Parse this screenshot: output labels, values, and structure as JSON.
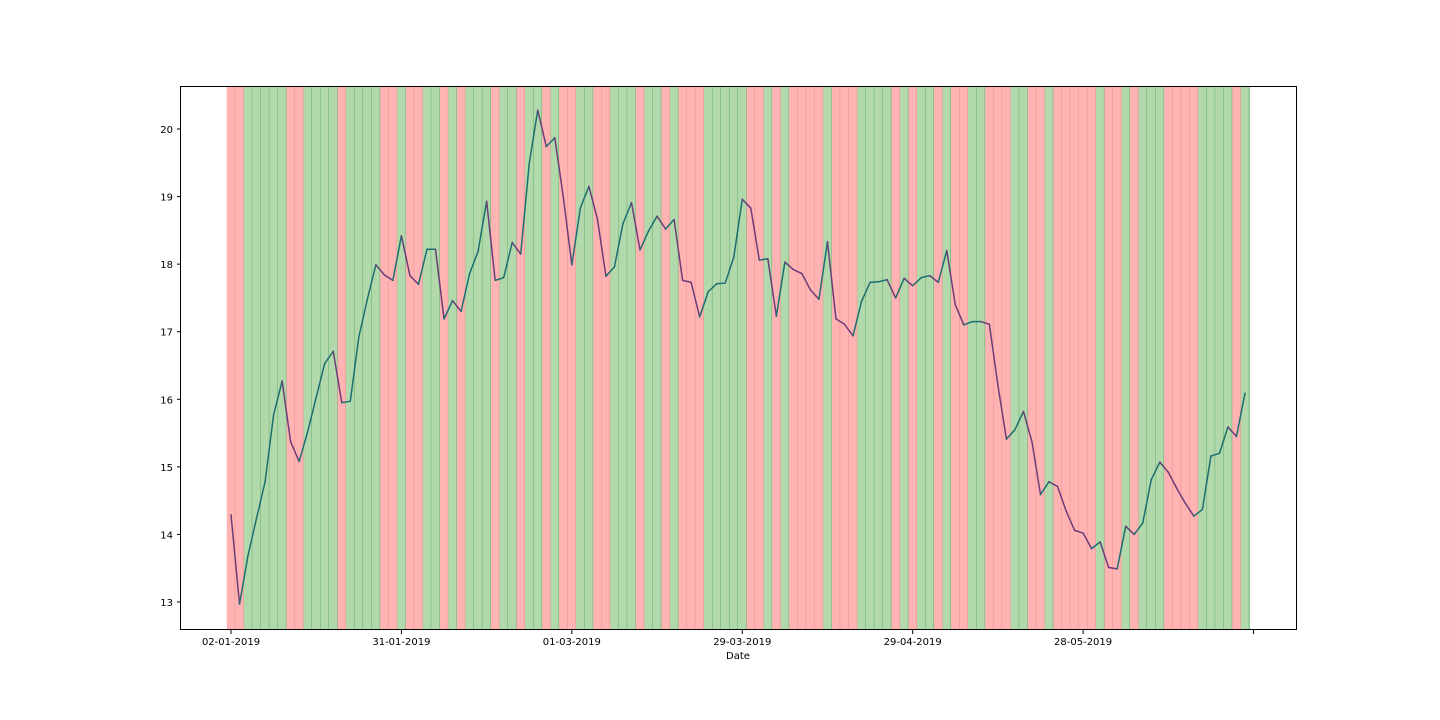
{
  "chart_data": {
    "type": "line",
    "xlabel": "Date",
    "ylabel": "",
    "ylim": [
      12.6,
      20.63
    ],
    "y_ticks": [
      13,
      14,
      15,
      16,
      17,
      18,
      19,
      20
    ],
    "x_tick_labels": [
      "02-01-2019",
      "31-01-2019",
      "01-03-2019",
      "29-03-2019",
      "29-04-2019",
      "28-05-2019",
      ""
    ],
    "x_tick_index": [
      0,
      20,
      40,
      60,
      80,
      100,
      120
    ],
    "colors": {
      "up_band": "#b1d9ab",
      "up_line": "#46a257",
      "down_band": "#ffb3b3",
      "down_line": "#f07f7f",
      "price_up": "#1d6f6f",
      "price_down": "#6b3d78"
    },
    "series": [
      {
        "values": [
          14.29,
          12.97,
          13.69,
          14.24,
          14.78,
          15.77,
          16.27,
          15.37,
          15.08,
          15.52,
          16.03,
          16.53,
          16.71,
          15.95,
          15.97,
          16.92,
          17.48,
          17.99,
          17.84,
          17.76,
          18.42,
          17.83,
          17.7,
          18.22,
          18.22,
          17.19,
          17.46,
          17.3,
          17.86,
          18.19,
          18.93,
          17.76,
          17.8,
          18.32,
          18.15,
          19.49,
          20.28,
          19.74,
          19.87,
          18.99,
          17.99,
          18.83,
          19.15,
          18.67,
          17.82,
          17.96,
          18.6,
          18.91,
          18.21,
          18.49,
          18.71,
          18.52,
          18.66,
          17.76,
          17.73,
          17.22,
          17.59,
          17.71,
          17.72,
          18.1,
          18.96,
          18.83,
          18.06,
          18.08,
          17.23,
          18.03,
          17.92,
          17.86,
          17.62,
          17.48,
          18.33,
          17.19,
          17.11,
          16.94,
          17.45,
          17.73,
          17.74,
          17.77,
          17.5,
          17.79,
          17.68,
          17.8,
          17.83,
          17.73,
          18.2,
          17.4,
          17.1,
          17.15,
          17.15,
          17.11,
          16.21,
          15.41,
          15.55,
          15.82,
          15.37,
          14.59,
          14.78,
          14.71,
          14.35,
          14.06,
          14.02,
          13.79,
          13.89,
          13.51,
          13.49,
          14.12,
          14.0,
          14.17,
          14.81,
          15.07,
          14.92,
          14.68,
          14.46,
          14.27,
          14.37,
          15.16,
          15.2,
          15.59,
          15.45,
          16.09
        ]
      }
    ]
  }
}
